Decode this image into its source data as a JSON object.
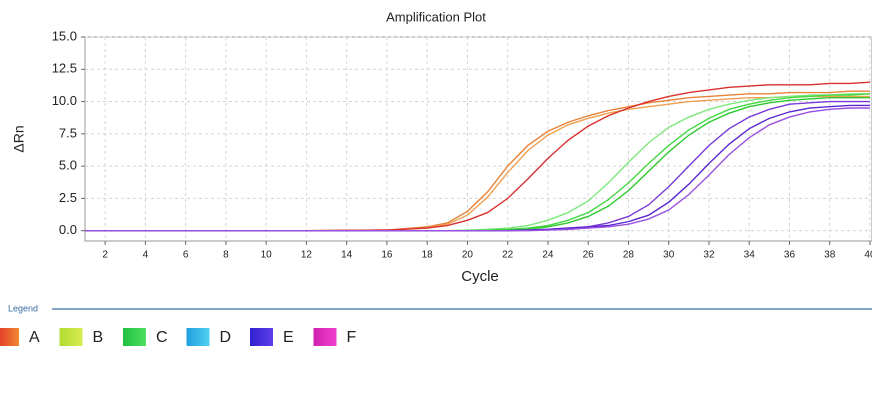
{
  "chart_data": {
    "type": "line",
    "title": "Amplification Plot",
    "x_label": "Cycle",
    "y_label": "ΔRn",
    "x": [
      1,
      6,
      12,
      16,
      18,
      19,
      20,
      21,
      22,
      23,
      24,
      25,
      26,
      27,
      28,
      29,
      30,
      31,
      32,
      33,
      34,
      35,
      36,
      37,
      38,
      39,
      40
    ],
    "xlim": [
      1,
      40.1
    ],
    "xticks": [
      2,
      4,
      6,
      8,
      10,
      12,
      14,
      16,
      18,
      20,
      22,
      24,
      26,
      28,
      30,
      32,
      34,
      36,
      38,
      40
    ],
    "ylim": [
      -0.8,
      15
    ],
    "yticks": [
      {
        "value": 0,
        "label": "0.0"
      },
      {
        "value": 2.5,
        "label": "2.5"
      },
      {
        "value": 5,
        "label": "5.0"
      },
      {
        "value": 7.5,
        "label": "7.5"
      },
      {
        "value": 10,
        "label": "10.0"
      },
      {
        "value": 12.5,
        "label": "12.5"
      },
      {
        "value": 15,
        "label": "15.0"
      }
    ],
    "grid": true,
    "legend_title": "Legend",
    "series": [
      {
        "name": "A",
        "color": [
          "#e0302a",
          "#f08a30"
        ],
        "curve_colors": [
          "#e8823a",
          "#f0a050",
          "#d93030"
        ],
        "curves": [
          [
            0,
            0,
            0,
            0.05,
            0.3,
            0.6,
            1.5,
            3.0,
            5.0,
            6.6,
            7.7,
            8.4,
            8.9,
            9.3,
            9.6,
            9.9,
            10.1,
            10.3,
            10.4,
            10.5,
            10.6,
            10.6,
            10.7,
            10.7,
            10.7,
            10.8,
            10.8
          ],
          [
            0,
            0,
            0,
            0.05,
            0.2,
            0.5,
            1.2,
            2.6,
            4.5,
            6.2,
            7.4,
            8.2,
            8.7,
            9.1,
            9.4,
            9.6,
            9.8,
            10.0,
            10.1,
            10.2,
            10.3,
            10.3,
            10.4,
            10.4,
            10.4,
            10.4,
            10.4
          ],
          [
            0,
            0,
            0,
            0.05,
            0.2,
            0.4,
            0.8,
            1.4,
            2.5,
            4.0,
            5.6,
            7.0,
            8.1,
            8.9,
            9.5,
            10.0,
            10.4,
            10.7,
            10.9,
            11.1,
            11.2,
            11.3,
            11.3,
            11.3,
            11.4,
            11.4,
            11.5
          ]
        ]
      },
      {
        "name": "B",
        "color": [
          "#b0dc30",
          "#d8ec50"
        ],
        "curve_colors": [],
        "curves": []
      },
      {
        "name": "C",
        "color": [
          "#20c040",
          "#50e060"
        ],
        "curve_colors": [
          "#7ee87e",
          "#44d844",
          "#2ec82e"
        ],
        "curves": [
          [
            0,
            0,
            0,
            0,
            0,
            0,
            0.05,
            0.1,
            0.2,
            0.4,
            0.8,
            1.4,
            2.3,
            3.7,
            5.3,
            6.8,
            8.0,
            8.8,
            9.4,
            9.8,
            10.1,
            10.3,
            10.4,
            10.5,
            10.5,
            10.6,
            10.6
          ],
          [
            0,
            0,
            0,
            0,
            0,
            0,
            0,
            0.05,
            0.1,
            0.2,
            0.4,
            0.8,
            1.4,
            2.4,
            3.7,
            5.2,
            6.6,
            7.8,
            8.7,
            9.4,
            9.8,
            10.1,
            10.3,
            10.4,
            10.5,
            10.5,
            10.6
          ],
          [
            0,
            0,
            0,
            0,
            0,
            0,
            0,
            0,
            0.05,
            0.1,
            0.3,
            0.6,
            1.1,
            1.9,
            3.1,
            4.6,
            6.1,
            7.4,
            8.4,
            9.1,
            9.6,
            9.9,
            10.1,
            10.2,
            10.3,
            10.3,
            10.3
          ]
        ]
      },
      {
        "name": "D",
        "color": [
          "#20a0e0",
          "#50d0f0"
        ],
        "curve_colors": [],
        "curves": []
      },
      {
        "name": "E",
        "color": [
          "#3020d0",
          "#6040e8"
        ],
        "curve_colors": [
          "#7a3ad8",
          "#5a28d0",
          "#9a50e0"
        ],
        "curves": [
          [
            0,
            0,
            0,
            0,
            0,
            0,
            0,
            0,
            0,
            0.05,
            0.1,
            0.2,
            0.3,
            0.6,
            1.1,
            2.0,
            3.4,
            5.0,
            6.6,
            7.9,
            8.8,
            9.4,
            9.8,
            9.9,
            10.0,
            10.0,
            10.0
          ],
          [
            0,
            0,
            0,
            0,
            0,
            0,
            0,
            0,
            0,
            0.05,
            0.1,
            0.2,
            0.3,
            0.4,
            0.7,
            1.2,
            2.2,
            3.6,
            5.2,
            6.7,
            7.9,
            8.7,
            9.2,
            9.5,
            9.6,
            9.7,
            9.7
          ],
          [
            0,
            0,
            0,
            0,
            0,
            0,
            0,
            0,
            0,
            0,
            0.05,
            0.1,
            0.2,
            0.3,
            0.5,
            0.9,
            1.6,
            2.8,
            4.3,
            5.9,
            7.2,
            8.2,
            8.8,
            9.2,
            9.4,
            9.5,
            9.5
          ]
        ]
      },
      {
        "name": "F",
        "color": [
          "#d020b0",
          "#f040d0"
        ],
        "curve_colors": [],
        "curves": []
      }
    ]
  }
}
